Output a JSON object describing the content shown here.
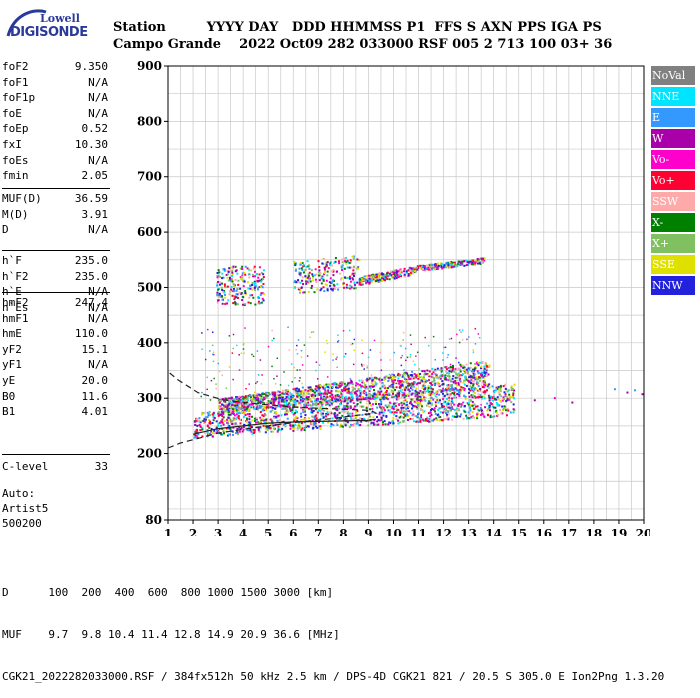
{
  "logo": {
    "line1": "Lowell",
    "line2": "DIGISONDE"
  },
  "header": {
    "row1": "Station         YYYY DAY   DDD HHMMSS P1  FFS S AXN PPS IGA PS",
    "row2": "Campo Grande    2022 Oct09 282 033000 RSF 005 2 713 100 03+ 36"
  },
  "params_group1": [
    {
      "k": "foF2",
      "v": "9.350"
    },
    {
      "k": "foF1",
      "v": "N/A"
    },
    {
      "k": "foF1p",
      "v": "N/A"
    },
    {
      "k": "foE",
      "v": "N/A"
    },
    {
      "k": "foEp",
      "v": "0.52"
    },
    {
      "k": "fxI",
      "v": "10.30"
    },
    {
      "k": "foEs",
      "v": "N/A"
    },
    {
      "k": "fmin",
      "v": "2.05"
    }
  ],
  "params_group2": [
    {
      "k": "MUF(D)",
      "v": "36.59"
    },
    {
      "k": "M(D)",
      "v": "3.91"
    },
    {
      "k": "D",
      "v": "N/A"
    }
  ],
  "params_group3": [
    {
      "k": "h`F",
      "v": "235.0"
    },
    {
      "k": "h`F2",
      "v": "235.0"
    },
    {
      "k": "h`E",
      "v": "N/A"
    },
    {
      "k": "h`Es",
      "v": "N/A"
    }
  ],
  "params_group4": [
    {
      "k": "hmF2",
      "v": "247.4"
    },
    {
      "k": "hmF1",
      "v": "N/A"
    },
    {
      "k": "hmE",
      "v": "110.0"
    },
    {
      "k": "yF2",
      "v": "15.1"
    },
    {
      "k": "yF1",
      "v": "N/A"
    },
    {
      "k": "yE",
      "v": "20.0"
    },
    {
      "k": "B0",
      "v": "11.6"
    },
    {
      "k": "B1",
      "v": "4.01"
    }
  ],
  "params_group5": [
    {
      "k": "C-level",
      "v": "33"
    }
  ],
  "auto": {
    "line1": "Auto:",
    "line2": "Artist5",
    "line3": "500200"
  },
  "legend": [
    {
      "label": "NoVal",
      "color": "#808080"
    },
    {
      "label": "NNE",
      "color": "#00e5ff"
    },
    {
      "label": "E",
      "color": "#3399ff"
    },
    {
      "label": "W",
      "color": "#aa00aa"
    },
    {
      "label": "Vo-",
      "color": "#ff00cc"
    },
    {
      "label": "Vo+",
      "color": "#ff0033"
    },
    {
      "label": "SSW",
      "color": "#ffaaaa"
    },
    {
      "label": "X-",
      "color": "#008000"
    },
    {
      "label": "X+",
      "color": "#80c060"
    },
    {
      "label": "SSE",
      "color": "#e0e000"
    },
    {
      "label": "NNW",
      "color": "#2222dd"
    }
  ],
  "footer": {
    "line1": "D      100  200  400  600  800 1000 1500 3000 [km]",
    "line2": "MUF    9.7  9.8 10.4 11.4 12.8 14.9 20.9 36.6 [MHz]",
    "line3": "CGK21_2022282033000.RSF / 384fx512h 50 kHz 2.5 km / DPS-4D CGK21 821 / 20.5 S 305.0 E Ion2Png 1.3.20"
  },
  "chart_data": {
    "type": "scatter",
    "xlim": [
      1,
      20
    ],
    "ylim": [
      80,
      900
    ],
    "x_ticks": [
      1,
      2,
      3,
      4,
      5,
      6,
      7,
      8,
      9,
      10,
      11,
      12,
      13,
      14,
      15,
      16,
      17,
      18,
      19,
      20
    ],
    "y_ticks": [
      80,
      200,
      300,
      400,
      500,
      600,
      700,
      800,
      900
    ],
    "grid": true,
    "trace_bands": [
      {
        "x0": 2.0,
        "x1": 14.8,
        "y0_low": 230,
        "y0_high": 275,
        "y1_low": 270,
        "y1_high": 330
      },
      {
        "x0": 3.0,
        "x1": 13.8,
        "y0_low": 275,
        "y0_high": 300,
        "y1_low": 320,
        "y1_high": 370
      },
      {
        "x0": 2.9,
        "x1": 4.8,
        "y0_low": 470,
        "y0_high": 540,
        "y1_low": 470,
        "y1_high": 540
      },
      {
        "x0": 6.0,
        "x1": 8.6,
        "y0_low": 490,
        "y0_high": 550,
        "y1_low": 500,
        "y1_high": 560
      },
      {
        "x0": 8.6,
        "x1": 10.8,
        "y0_low": 505,
        "y0_high": 520,
        "y1_low": 525,
        "y1_high": 540
      },
      {
        "x0": 10.8,
        "x1": 13.6,
        "y0_low": 530,
        "y0_high": 540,
        "y1_low": 545,
        "y1_high": 555
      }
    ],
    "outliers": [
      {
        "x": 18.8,
        "y": 318
      },
      {
        "x": 19.3,
        "y": 312
      },
      {
        "x": 19.6,
        "y": 316
      },
      {
        "x": 19.9,
        "y": 309
      },
      {
        "x": 17.1,
        "y": 294
      },
      {
        "x": 16.4,
        "y": 302
      },
      {
        "x": 15.6,
        "y": 298
      }
    ],
    "profile_solid": [
      [
        2.0,
        235
      ],
      [
        3.0,
        245
      ],
      [
        4.0,
        250
      ],
      [
        5.0,
        255
      ],
      [
        6.0,
        257
      ],
      [
        7.0,
        258
      ],
      [
        8.0,
        259
      ],
      [
        9.0,
        260
      ],
      [
        9.3,
        262
      ]
    ],
    "profile_dashed": [
      [
        1.0,
        210
      ],
      [
        1.5,
        219
      ],
      [
        2.0,
        225
      ],
      [
        3.0,
        237
      ],
      [
        4.5,
        247
      ],
      [
        6.0,
        256
      ],
      [
        7.5,
        263
      ],
      [
        8.5,
        269
      ],
      [
        9.3,
        273
      ],
      [
        9.1,
        278
      ],
      [
        8.0,
        280
      ],
      [
        6.0,
        284
      ],
      [
        4.5,
        290
      ],
      [
        3.2,
        297
      ],
      [
        2.2,
        310
      ],
      [
        1.4,
        333
      ],
      [
        1.0,
        348
      ]
    ]
  }
}
